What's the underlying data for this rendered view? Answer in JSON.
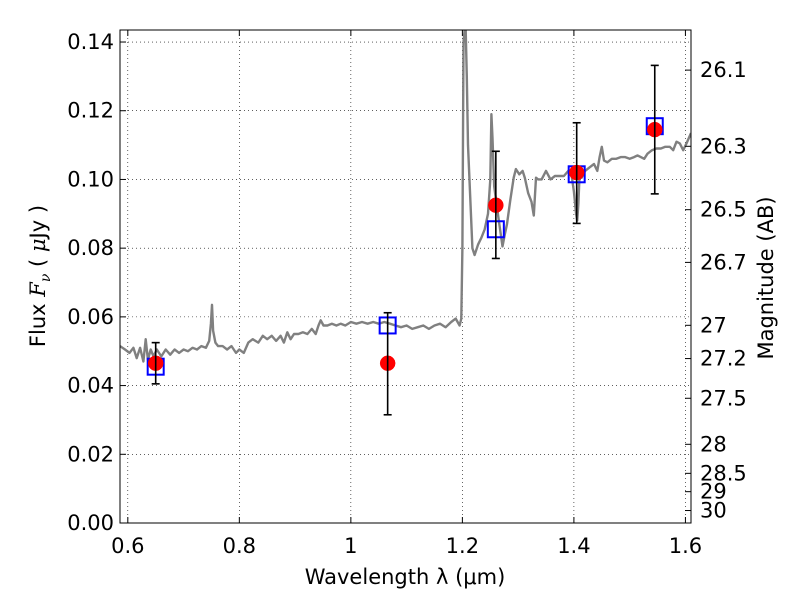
{
  "chart_data": {
    "type": "scatter",
    "xlabel": "Wavelength  λ (μm)",
    "ylabel": {
      "prefix": "Flux  ",
      "symbol": "F",
      "subscript": "ν",
      "unit_open": "  ( ",
      "unit_mu": "μ",
      "unit_rest": "Jy )"
    },
    "y2label": "Magnitude (AB)",
    "xlim": [
      0.586,
      1.61
    ],
    "ylim": [
      0.0,
      0.1435
    ],
    "grid": true,
    "x_ticks": [
      {
        "value": 0.6,
        "label": "0.6"
      },
      {
        "value": 0.8,
        "label": "0.8"
      },
      {
        "value": 1.0,
        "label": "1"
      },
      {
        "value": 1.2,
        "label": "1.2"
      },
      {
        "value": 1.4,
        "label": "1.4"
      },
      {
        "value": 1.6,
        "label": "1.6"
      }
    ],
    "y_ticks": [
      {
        "value": 0.0,
        "label": "0.00"
      },
      {
        "value": 0.02,
        "label": "0.02"
      },
      {
        "value": 0.04,
        "label": "0.04"
      },
      {
        "value": 0.06,
        "label": "0.06"
      },
      {
        "value": 0.08,
        "label": "0.08"
      },
      {
        "value": 0.1,
        "label": "0.10"
      },
      {
        "value": 0.12,
        "label": "0.12"
      },
      {
        "value": 0.14,
        "label": "0.14"
      }
    ],
    "y2_ticks": [
      {
        "mag": 26.1,
        "label": "26.1"
      },
      {
        "mag": 26.3,
        "label": "26.3"
      },
      {
        "mag": 26.5,
        "label": "26.5"
      },
      {
        "mag": 26.7,
        "label": "26.7"
      },
      {
        "mag": 27.0,
        "label": "27"
      },
      {
        "mag": 27.2,
        "label": "27.2"
      },
      {
        "mag": 27.5,
        "label": "27.5"
      },
      {
        "mag": 28.0,
        "label": "28"
      },
      {
        "mag": 28.5,
        "label": "28.5"
      },
      {
        "mag": 29.0,
        "label": "29"
      },
      {
        "mag": 30.0,
        "label": "30"
      }
    ],
    "series": [
      {
        "kind": "line",
        "color": "#808080",
        "points": [
          [
            0.586,
            0.0515
          ],
          [
            0.595,
            0.0505
          ],
          [
            0.603,
            0.0495
          ],
          [
            0.61,
            0.051
          ],
          [
            0.616,
            0.048
          ],
          [
            0.622,
            0.051
          ],
          [
            0.628,
            0.047
          ],
          [
            0.632,
            0.0535
          ],
          [
            0.636,
            0.0475
          ],
          [
            0.641,
            0.0505
          ],
          [
            0.646,
            0.0485
          ],
          [
            0.652,
            0.0505
          ],
          [
            0.66,
            0.0485
          ],
          [
            0.668,
            0.0505
          ],
          [
            0.676,
            0.049
          ],
          [
            0.684,
            0.0505
          ],
          [
            0.692,
            0.0495
          ],
          [
            0.7,
            0.0505
          ],
          [
            0.708,
            0.05
          ],
          [
            0.716,
            0.051
          ],
          [
            0.724,
            0.0505
          ],
          [
            0.732,
            0.0515
          ],
          [
            0.74,
            0.051
          ],
          [
            0.746,
            0.053
          ],
          [
            0.749,
            0.058
          ],
          [
            0.751,
            0.0635
          ],
          [
            0.753,
            0.056
          ],
          [
            0.757,
            0.0525
          ],
          [
            0.762,
            0.0515
          ],
          [
            0.77,
            0.0515
          ],
          [
            0.778,
            0.0505
          ],
          [
            0.786,
            0.0515
          ],
          [
            0.794,
            0.0495
          ],
          [
            0.8,
            0.0505
          ],
          [
            0.808,
            0.0495
          ],
          [
            0.816,
            0.0525
          ],
          [
            0.824,
            0.0535
          ],
          [
            0.834,
            0.0525
          ],
          [
            0.842,
            0.0545
          ],
          [
            0.85,
            0.0535
          ],
          [
            0.858,
            0.0545
          ],
          [
            0.866,
            0.053
          ],
          [
            0.874,
            0.0545
          ],
          [
            0.88,
            0.0525
          ],
          [
            0.886,
            0.0555
          ],
          [
            0.892,
            0.0535
          ],
          [
            0.898,
            0.055
          ],
          [
            0.906,
            0.055
          ],
          [
            0.914,
            0.0555
          ],
          [
            0.922,
            0.055
          ],
          [
            0.93,
            0.0565
          ],
          [
            0.937,
            0.055
          ],
          [
            0.942,
            0.0575
          ],
          [
            0.946,
            0.059
          ],
          [
            0.951,
            0.0575
          ],
          [
            0.958,
            0.0575
          ],
          [
            0.966,
            0.058
          ],
          [
            0.974,
            0.0575
          ],
          [
            0.982,
            0.058
          ],
          [
            0.99,
            0.0575
          ],
          [
            1.0,
            0.0585
          ],
          [
            1.01,
            0.058
          ],
          [
            1.02,
            0.0585
          ],
          [
            1.03,
            0.058
          ],
          [
            1.04,
            0.0585
          ],
          [
            1.05,
            0.058
          ],
          [
            1.06,
            0.0585
          ],
          [
            1.07,
            0.058
          ],
          [
            1.08,
            0.0575
          ],
          [
            1.09,
            0.057
          ],
          [
            1.1,
            0.0575
          ],
          [
            1.11,
            0.0565
          ],
          [
            1.12,
            0.057
          ],
          [
            1.13,
            0.0575
          ],
          [
            1.14,
            0.0565
          ],
          [
            1.15,
            0.0575
          ],
          [
            1.16,
            0.058
          ],
          [
            1.17,
            0.057
          ],
          [
            1.18,
            0.0585
          ],
          [
            1.188,
            0.0595
          ],
          [
            1.195,
            0.0575
          ],
          [
            1.198,
            0.0595
          ],
          [
            1.2,
            0.08
          ],
          [
            1.202,
            0.14
          ],
          [
            1.204,
            0.1435
          ],
          [
            1.206,
            0.1435
          ],
          [
            1.208,
            0.13
          ],
          [
            1.21,
            0.11
          ],
          [
            1.214,
            0.095
          ],
          [
            1.218,
            0.08
          ],
          [
            1.222,
            0.078
          ],
          [
            1.228,
            0.081
          ],
          [
            1.234,
            0.083
          ],
          [
            1.24,
            0.0855
          ],
          [
            1.246,
            0.09
          ],
          [
            1.25,
            0.1
          ],
          [
            1.252,
            0.119
          ],
          [
            1.254,
            0.112
          ],
          [
            1.257,
            0.098
          ],
          [
            1.262,
            0.092
          ],
          [
            1.268,
            0.085
          ],
          [
            1.272,
            0.0805
          ],
          [
            1.276,
            0.084
          ],
          [
            1.28,
            0.087
          ],
          [
            1.286,
            0.094
          ],
          [
            1.292,
            0.1005
          ],
          [
            1.296,
            0.103
          ],
          [
            1.302,
            0.1015
          ],
          [
            1.308,
            0.1025
          ],
          [
            1.312,
            0.1005
          ],
          [
            1.318,
            0.096
          ],
          [
            1.324,
            0.0935
          ],
          [
            1.328,
            0.0895
          ],
          [
            1.332,
            0.1005
          ],
          [
            1.336,
            0.1
          ],
          [
            1.342,
            0.1
          ],
          [
            1.35,
            0.1025
          ],
          [
            1.358,
            0.1
          ],
          [
            1.366,
            0.101
          ],
          [
            1.374,
            0.101
          ],
          [
            1.382,
            0.101
          ],
          [
            1.39,
            0.1025
          ],
          [
            1.396,
            0.101
          ],
          [
            1.4,
            0.0965
          ],
          [
            1.404,
            0.09
          ],
          [
            1.406,
            0.088
          ],
          [
            1.408,
            0.093
          ],
          [
            1.41,
            0.101
          ],
          [
            1.414,
            0.1005
          ],
          [
            1.42,
            0.1025
          ],
          [
            1.428,
            0.1035
          ],
          [
            1.436,
            0.1045
          ],
          [
            1.442,
            0.1025
          ],
          [
            1.446,
            0.1065
          ],
          [
            1.45,
            0.1095
          ],
          [
            1.454,
            0.1055
          ],
          [
            1.46,
            0.105
          ],
          [
            1.468,
            0.106
          ],
          [
            1.476,
            0.106
          ],
          [
            1.484,
            0.1065
          ],
          [
            1.492,
            0.1065
          ],
          [
            1.5,
            0.106
          ],
          [
            1.508,
            0.1065
          ],
          [
            1.514,
            0.107
          ],
          [
            1.52,
            0.1065
          ],
          [
            1.526,
            0.106
          ],
          [
            1.532,
            0.1075
          ],
          [
            1.54,
            0.1085
          ],
          [
            1.548,
            0.109
          ],
          [
            1.556,
            0.109
          ],
          [
            1.564,
            0.1095
          ],
          [
            1.572,
            0.1095
          ],
          [
            1.578,
            0.1085
          ],
          [
            1.584,
            0.111
          ],
          [
            1.59,
            0.1105
          ],
          [
            1.596,
            0.1085
          ],
          [
            1.602,
            0.1105
          ],
          [
            1.61,
            0.1135
          ]
        ]
      },
      {
        "kind": "markers-square",
        "color": "#0000ff",
        "points": [
          [
            0.65,
            0.0455
          ],
          [
            1.066,
            0.0575
          ],
          [
            1.26,
            0.0855
          ],
          [
            1.405,
            0.1015
          ],
          [
            1.545,
            0.1155
          ]
        ]
      },
      {
        "kind": "markers-circle",
        "color": "#ff0000",
        "points": [
          [
            0.65,
            0.0465
          ],
          [
            1.066,
            0.0465
          ],
          [
            1.26,
            0.0925
          ],
          [
            1.405,
            0.102
          ],
          [
            1.545,
            0.1145
          ]
        ]
      },
      {
        "kind": "errorbar",
        "color": "#000000",
        "points": [
          [
            0.65,
            0.0405,
            0.0525
          ],
          [
            1.066,
            0.0315,
            0.0612
          ],
          [
            1.26,
            0.077,
            0.1082
          ],
          [
            1.405,
            0.0872,
            0.1165
          ],
          [
            1.545,
            0.0958,
            0.1332
          ]
        ]
      }
    ]
  }
}
